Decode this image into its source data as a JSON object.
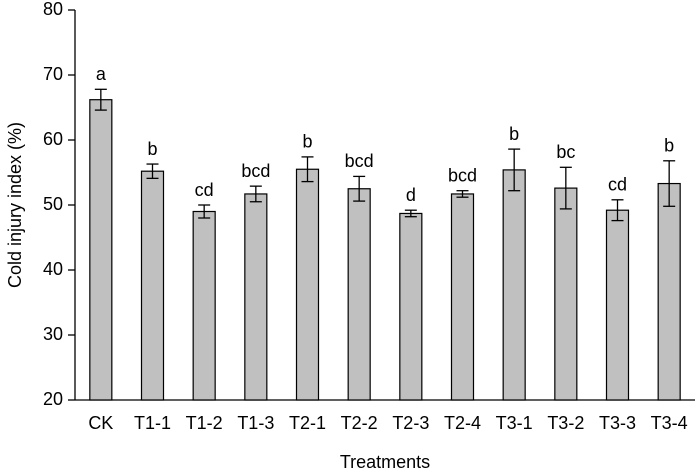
{
  "chart_data": {
    "type": "bar",
    "x_label": "Treatments",
    "y_label": "Cold injury index (%)",
    "categories": [
      "CK",
      "T1-1",
      "T1-2",
      "T1-3",
      "T2-1",
      "T2-2",
      "T2-3",
      "T2-4",
      "T3-1",
      "T3-2",
      "T3-3",
      "T3-4"
    ],
    "values": [
      66.2,
      55.2,
      49.0,
      51.7,
      55.5,
      52.5,
      48.7,
      51.7,
      55.4,
      52.6,
      49.2,
      53.3
    ],
    "errors": [
      1.6,
      1.1,
      1.0,
      1.2,
      1.9,
      1.9,
      0.5,
      0.5,
      3.2,
      3.2,
      1.6,
      3.5
    ],
    "letters": [
      "a",
      "b",
      "cd",
      "bcd",
      "b",
      "bcd",
      "d",
      "bcd",
      "b",
      "bc",
      "cd",
      "b"
    ],
    "color": "#c0c0c0",
    "ylim": [
      20,
      80
    ],
    "yticks": [
      20,
      30,
      40,
      50,
      60,
      70,
      80
    ],
    "grid": false
  }
}
